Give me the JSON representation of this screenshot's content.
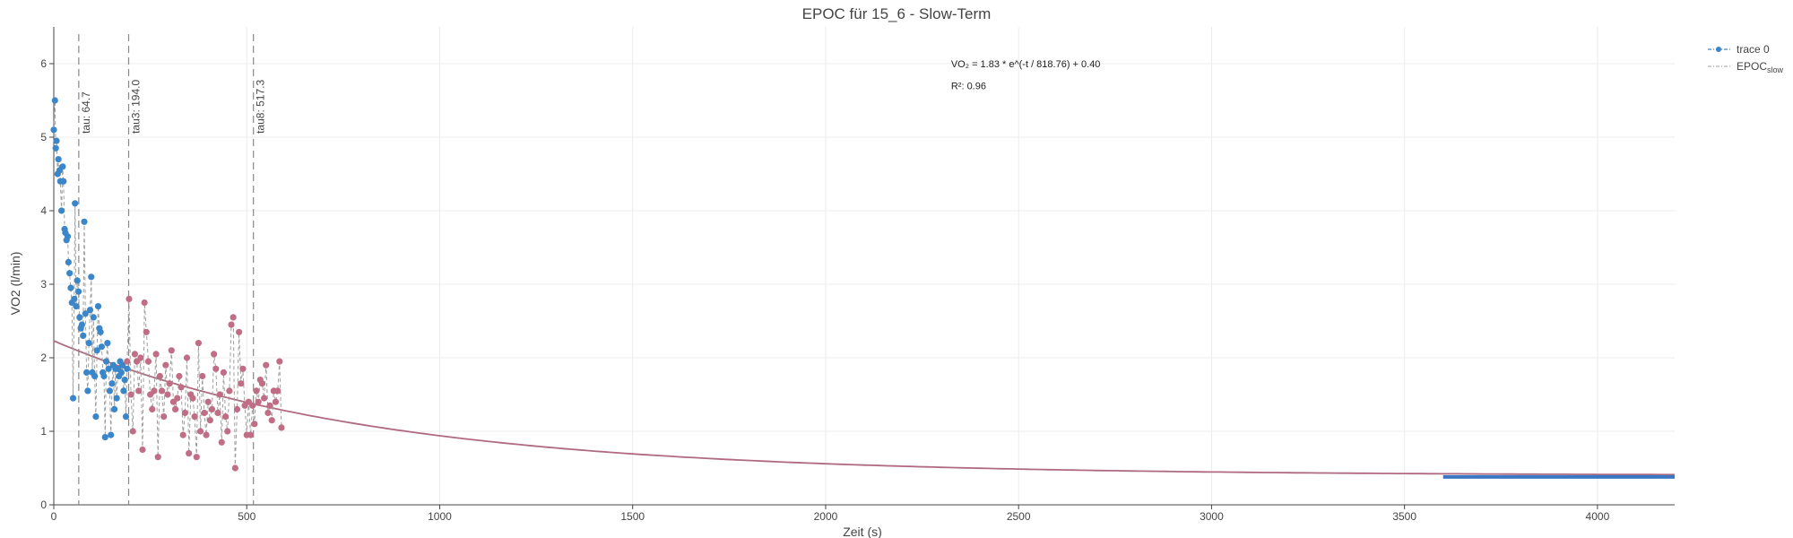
{
  "chart_data": {
    "type": "scatter",
    "title": "EPOC für 15_6 - Slow-Term",
    "xlabel": "Zeit (s)",
    "ylabel": "VO2 (l/min)",
    "xlim": [
      0,
      4200
    ],
    "ylim": [
      0,
      6.5
    ],
    "x_ticks": [
      0,
      500,
      1000,
      1500,
      2000,
      2500,
      3000,
      3500,
      4000
    ],
    "y_ticks": [
      0,
      1,
      2,
      3,
      4,
      5,
      6
    ],
    "grid": true,
    "legend_position": "top-right",
    "legend": [
      {
        "label": "trace 0",
        "color": "#3a86c8",
        "style": "dash-dot-marker"
      },
      {
        "label": "EPOC",
        "subscript": "slow",
        "color": "#b0b0b0",
        "style": "dash-dot"
      }
    ],
    "colors": {
      "trace0": "#3a86c8",
      "slow_points": "#bf6e85",
      "fit": "#b06a80",
      "connector": "#9e9e9e",
      "vline": "#888888",
      "baseline": "#3a78c4"
    },
    "annotations": [
      {
        "x": 2325,
        "y": 6.0,
        "text": "VO₂ = 1.83 * e^(-t / 818.76) + 0.40"
      },
      {
        "x": 2325,
        "y": 5.7,
        "text": "R²: 0.96"
      }
    ],
    "vlines": [
      {
        "x": 64.7,
        "label": "tau: 64.7"
      },
      {
        "x": 194.0,
        "label": "tau3: 194.0"
      },
      {
        "x": 517.3,
        "label": "tau8: 517.3"
      }
    ],
    "fit": {
      "a": 1.83,
      "tau": 818.76,
      "c": 0.4,
      "x_start": 0,
      "x_end": 4200
    },
    "baseline": {
      "x_start": 3600,
      "x_end": 4200,
      "y": 0.38
    },
    "series": [
      {
        "name": "trace 0",
        "x": [
          0,
          3,
          5,
          7,
          10,
          12,
          15,
          17,
          20,
          23,
          25,
          28,
          30,
          33,
          36,
          38,
          41,
          44,
          47,
          50,
          53,
          55,
          58,
          61,
          64,
          67,
          70,
          73,
          76,
          79,
          82,
          85,
          88,
          91,
          94,
          97,
          100,
          103,
          106,
          109,
          112,
          115,
          118,
          121,
          124,
          127,
          130,
          133,
          136,
          139,
          142,
          145,
          148,
          151,
          154,
          157,
          160,
          163,
          166,
          169,
          172,
          175,
          178,
          181,
          184,
          187,
          190
        ],
        "y": [
          5.1,
          5.5,
          4.85,
          4.95,
          4.5,
          4.7,
          4.55,
          4.4,
          4.0,
          4.6,
          4.4,
          3.75,
          3.7,
          3.6,
          3.65,
          3.3,
          3.15,
          2.95,
          2.75,
          1.45,
          2.8,
          4.1,
          2.7,
          3.05,
          2.9,
          2.55,
          2.4,
          2.45,
          2.3,
          3.85,
          2.6,
          1.8,
          1.55,
          2.2,
          2.65,
          3.1,
          1.8,
          2.55,
          1.75,
          1.2,
          2.1,
          2.7,
          2.4,
          2.35,
          2.15,
          1.8,
          1.75,
          0.92,
          1.95,
          2.2,
          1.85,
          1.55,
          0.95,
          1.65,
          1.9,
          1.3,
          1.85,
          1.45,
          1.85,
          1.75,
          1.95,
          1.8,
          1.9,
          1.55,
          1.7,
          1.2,
          1.85
        ]
      },
      {
        "name": "",
        "x": [
          190,
          195,
          200,
          205,
          210,
          215,
          220,
          225,
          230,
          235,
          240,
          245,
          250,
          255,
          260,
          265,
          270,
          275,
          280,
          285,
          290,
          295,
          300,
          305,
          310,
          315,
          320,
          325,
          330,
          335,
          340,
          345,
          350,
          355,
          360,
          365,
          370,
          375,
          380,
          385,
          390,
          395,
          400,
          405,
          410,
          415,
          420,
          425,
          430,
          435,
          440,
          445,
          450,
          455,
          460,
          465,
          470,
          475,
          480,
          485,
          490,
          495,
          500,
          505,
          510,
          515,
          520,
          525,
          530,
          535,
          540,
          545,
          550,
          555,
          560,
          565,
          570,
          575,
          580,
          585,
          590
        ],
        "y": [
          1.95,
          2.8,
          1.5,
          1.0,
          2.05,
          1.95,
          1.55,
          2.0,
          0.75,
          2.75,
          2.35,
          1.95,
          1.5,
          1.3,
          1.55,
          2.05,
          0.65,
          1.75,
          1.55,
          1.2,
          1.9,
          1.5,
          1.65,
          2.1,
          1.4,
          1.3,
          1.45,
          1.75,
          1.6,
          0.95,
          1.25,
          2.0,
          0.7,
          1.5,
          1.45,
          1.2,
          0.65,
          2.2,
          1.0,
          1.75,
          1.25,
          0.95,
          1.4,
          1.15,
          1.3,
          2.05,
          1.85,
          1.25,
          1.5,
          0.85,
          1.8,
          1.2,
          1.0,
          1.55,
          2.45,
          2.55,
          0.5,
          1.3,
          2.35,
          1.65,
          1.85,
          1.35,
          0.95,
          1.4,
          0.95,
          1.35,
          1.1,
          1.55,
          1.4,
          1.7,
          1.65,
          1.45,
          1.9,
          1.25,
          1.35,
          1.15,
          1.55,
          1.4,
          1.55,
          1.95,
          1.05
        ]
      }
    ]
  }
}
